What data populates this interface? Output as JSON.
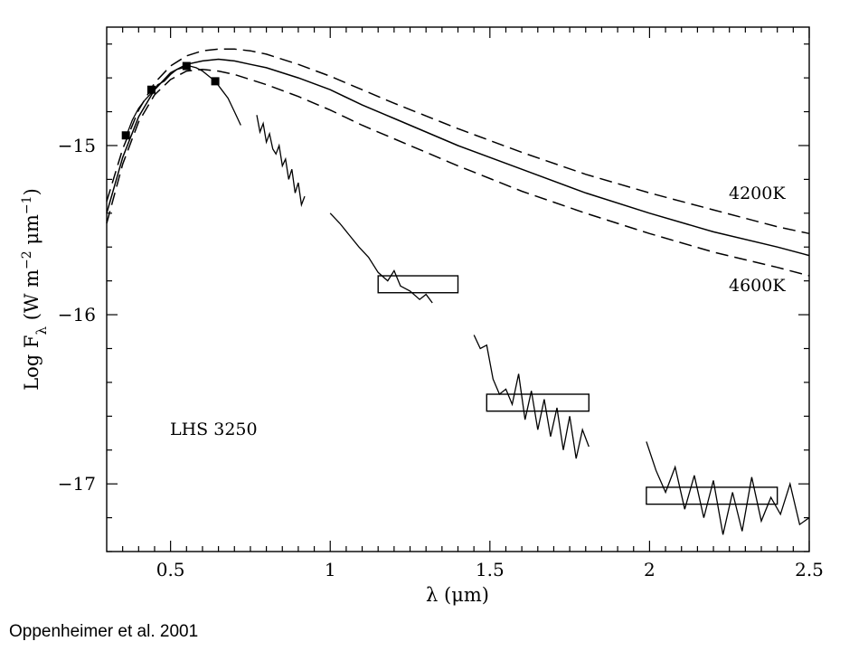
{
  "chart_data": {
    "type": "line",
    "xlabel": "λ (μm)",
    "ylabel": "Log F_λ (W m^-2 μm^-1)",
    "xlim": [
      0.3,
      2.5
    ],
    "ylim": [
      -17.4,
      -14.3
    ],
    "x_ticks": [
      0.5,
      1,
      1.5,
      2,
      2.5
    ],
    "x_tick_labels": [
      "0.5",
      "1",
      "1.5",
      "2",
      "2.5"
    ],
    "y_ticks": [
      -15,
      -16,
      -17
    ],
    "y_tick_labels": [
      "−15",
      "−16",
      "−17"
    ],
    "annotations": {
      "object": "LHS 3250",
      "temp_cool": "4200K",
      "temp_hot": "4600K"
    },
    "series": [
      {
        "style": "dashed",
        "x": [
          0.3,
          0.35,
          0.4,
          0.45,
          0.5,
          0.55,
          0.6,
          0.65,
          0.7,
          0.75,
          0.8,
          0.9,
          1.0,
          1.1,
          1.2,
          1.4,
          1.6,
          1.8,
          2.0,
          2.2,
          2.4,
          2.5
        ],
        "y": [
          -15.33,
          -15.02,
          -14.79,
          -14.63,
          -14.53,
          -14.47,
          -14.44,
          -14.43,
          -14.43,
          -14.44,
          -14.46,
          -14.52,
          -14.59,
          -14.67,
          -14.75,
          -14.9,
          -15.04,
          -15.17,
          -15.28,
          -15.38,
          -15.48,
          -15.52
        ]
      },
      {
        "style": "solid",
        "x": [
          0.3,
          0.35,
          0.4,
          0.45,
          0.5,
          0.55,
          0.6,
          0.65,
          0.7,
          0.75,
          0.8,
          0.9,
          1.0,
          1.1,
          1.2,
          1.4,
          1.6,
          1.8,
          2.0,
          2.2,
          2.4,
          2.5
        ],
        "y": [
          -15.4,
          -15.07,
          -14.83,
          -14.67,
          -14.57,
          -14.52,
          -14.5,
          -14.49,
          -14.5,
          -14.52,
          -14.54,
          -14.6,
          -14.67,
          -14.76,
          -14.84,
          -15.0,
          -15.14,
          -15.28,
          -15.4,
          -15.51,
          -15.6,
          -15.65
        ]
      },
      {
        "style": "dashed",
        "x": [
          0.3,
          0.35,
          0.4,
          0.45,
          0.5,
          0.55,
          0.6,
          0.65,
          0.7,
          0.75,
          0.8,
          0.9,
          1.0,
          1.1,
          1.2,
          1.4,
          1.6,
          1.8,
          2.0,
          2.2,
          2.4,
          2.5
        ],
        "y": [
          -15.46,
          -15.11,
          -14.86,
          -14.7,
          -14.61,
          -14.56,
          -14.55,
          -14.56,
          -14.58,
          -14.61,
          -14.64,
          -14.71,
          -14.79,
          -14.88,
          -14.96,
          -15.12,
          -15.27,
          -15.4,
          -15.52,
          -15.63,
          -15.72,
          -15.77
        ]
      },
      {
        "style": "spectrum",
        "segments": [
          {
            "x": [
              0.36,
              0.38,
              0.4,
              0.42,
              0.44,
              0.46,
              0.48,
              0.5,
              0.52,
              0.54,
              0.56,
              0.58,
              0.6,
              0.62,
              0.64,
              0.66,
              0.68,
              0.7,
              0.72
            ],
            "y": [
              -14.95,
              -14.85,
              -14.78,
              -14.73,
              -14.69,
              -14.64,
              -14.62,
              -14.58,
              -14.55,
              -14.54,
              -14.53,
              -14.54,
              -14.56,
              -14.59,
              -14.62,
              -14.67,
              -14.72,
              -14.8,
              -14.88
            ]
          },
          {
            "x": [
              0.77,
              0.78,
              0.79,
              0.8,
              0.81,
              0.82,
              0.83,
              0.84,
              0.85,
              0.86,
              0.87,
              0.88,
              0.89,
              0.9,
              0.91,
              0.92
            ],
            "y": [
              -14.82,
              -14.92,
              -14.87,
              -14.98,
              -14.93,
              -15.02,
              -15.05,
              -15.0,
              -15.12,
              -15.08,
              -15.2,
              -15.14,
              -15.28,
              -15.22,
              -15.35,
              -15.3
            ]
          },
          {
            "x": [
              1.0,
              1.03,
              1.06,
              1.09,
              1.12,
              1.15,
              1.18,
              1.2,
              1.22,
              1.25,
              1.28,
              1.3,
              1.32
            ],
            "y": [
              -15.4,
              -15.46,
              -15.53,
              -15.6,
              -15.66,
              -15.75,
              -15.8,
              -15.74,
              -15.83,
              -15.86,
              -15.91,
              -15.88,
              -15.93
            ]
          },
          {
            "x": [
              1.45,
              1.47,
              1.49,
              1.51,
              1.53,
              1.55,
              1.57,
              1.59,
              1.61,
              1.63,
              1.65,
              1.67,
              1.69,
              1.71,
              1.73,
              1.75,
              1.77,
              1.79,
              1.81
            ],
            "y": [
              -16.12,
              -16.2,
              -16.18,
              -16.38,
              -16.47,
              -16.44,
              -16.53,
              -16.35,
              -16.62,
              -16.45,
              -16.68,
              -16.5,
              -16.72,
              -16.55,
              -16.8,
              -16.6,
              -16.85,
              -16.68,
              -16.78
            ]
          },
          {
            "x": [
              1.99,
              2.02,
              2.05,
              2.08,
              2.11,
              2.14,
              2.17,
              2.2,
              2.23,
              2.26,
              2.29,
              2.32,
              2.35,
              2.38,
              2.41,
              2.44,
              2.47,
              2.5
            ],
            "y": [
              -16.75,
              -16.92,
              -17.05,
              -16.9,
              -17.15,
              -16.95,
              -17.2,
              -16.98,
              -17.3,
              -17.05,
              -17.28,
              -16.96,
              -17.22,
              -17.08,
              -17.18,
              -17.0,
              -17.24,
              -17.2
            ]
          }
        ]
      }
    ],
    "photometry": {
      "x": [
        0.36,
        0.44,
        0.55,
        0.64
      ],
      "y": [
        -14.94,
        -14.67,
        -14.53,
        -14.62
      ]
    },
    "bands": [
      {
        "x0": 1.15,
        "x1": 1.4,
        "y0": -15.77,
        "y1": -15.87
      },
      {
        "x0": 1.49,
        "x1": 1.81,
        "y0": -16.47,
        "y1": -16.57
      },
      {
        "x0": 1.99,
        "x1": 2.4,
        "y0": -17.02,
        "y1": -17.12
      }
    ]
  },
  "credit": "Oppenheimer et al. 2001"
}
